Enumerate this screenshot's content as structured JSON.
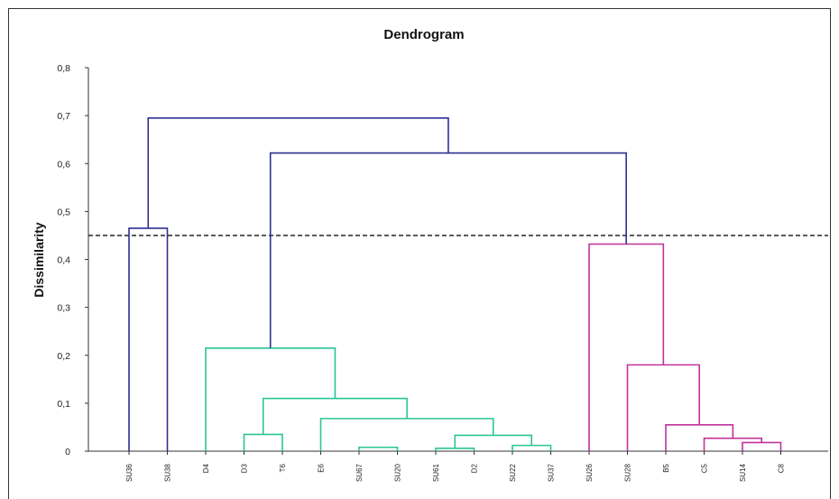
{
  "chart_data": {
    "type": "dendrogram",
    "title": "Dendrogram",
    "xlabel": "",
    "ylabel": "Dissimilarity",
    "ylim": [
      0,
      0.8
    ],
    "yticks": [
      "0",
      "0,1",
      "0,2",
      "0,3",
      "0,4",
      "0,5",
      "0,6",
      "0,7",
      "0,8"
    ],
    "truncation_level": 0.45,
    "grid": false,
    "leaves": [
      "SU36",
      "SU38",
      "D4",
      "D3",
      "T6",
      "E6",
      "SU67",
      "SU20",
      "SU61",
      "D2",
      "SU22",
      "SU37",
      "SU26",
      "SU28",
      "B5",
      "C5",
      "SU14",
      "C8"
    ],
    "merges": [
      {
        "a": 0,
        "b": 1,
        "height": 0.465,
        "class": 1
      },
      {
        "a": 3,
        "b": 4,
        "height": 0.035,
        "class": 2
      },
      {
        "a": 10,
        "b": 11,
        "height": 0.012,
        "class": 2
      },
      {
        "a": 6,
        "b": 7,
        "height": 0.008,
        "class": 2
      },
      {
        "a": 8,
        "b": 9,
        "height": 0.006,
        "class": 2
      },
      {
        "a": "m5",
        "b": "m3",
        "height": 0.033,
        "class": 2
      },
      {
        "a": 5,
        "b": "m6",
        "height": 0.068,
        "class": 2
      },
      {
        "a": "m2",
        "b": "m7",
        "height": 0.11,
        "class": 2
      },
      {
        "a": 2,
        "b": "m8",
        "height": 0.215,
        "class": 2
      },
      {
        "a": 16,
        "b": 17,
        "height": 0.018,
        "class": 3
      },
      {
        "a": 15,
        "b": "m10",
        "height": 0.027,
        "class": 3
      },
      {
        "a": 14,
        "b": "m11",
        "height": 0.055,
        "class": 3
      },
      {
        "a": 13,
        "b": "m12",
        "height": 0.18,
        "class": 3
      },
      {
        "a": 12,
        "b": "m13",
        "height": 0.432,
        "class": 3
      },
      {
        "a": "m9",
        "b": "m14",
        "height": 0.622,
        "class": 1
      },
      {
        "a": "m1",
        "b": "m15",
        "height": 0.695,
        "class": 1
      }
    ],
    "class_colors": {
      "1": "#2e3092",
      "2": "#29c597",
      "3": "#c0339a"
    }
  }
}
